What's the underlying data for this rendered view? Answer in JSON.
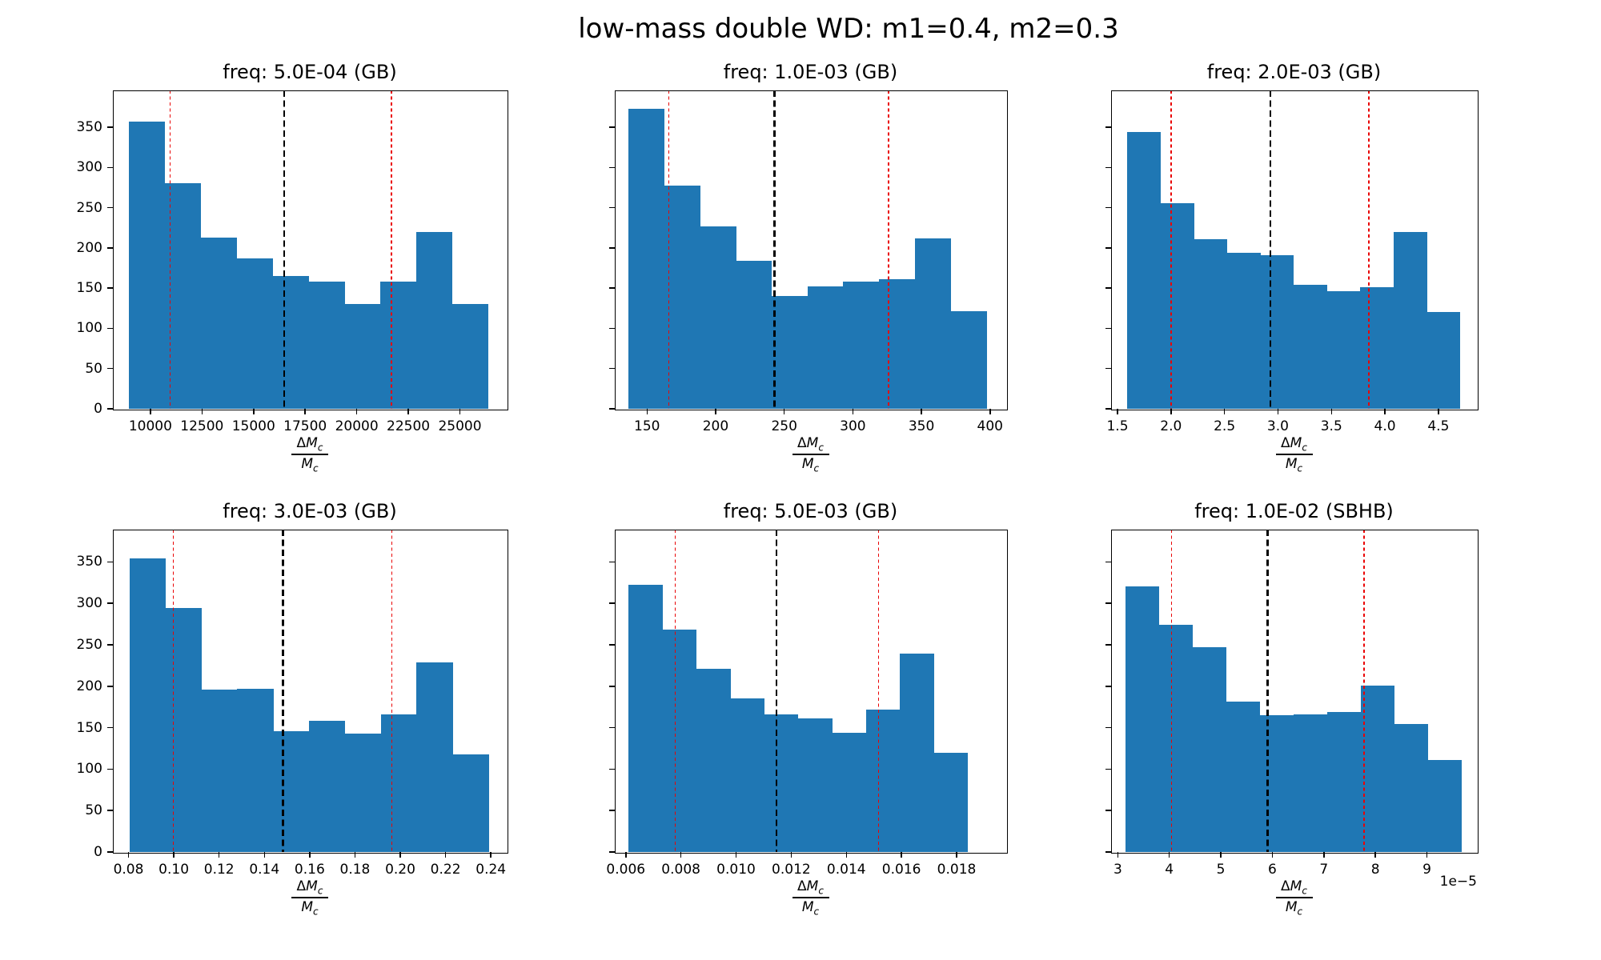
{
  "suptitle": "low-mass double WD: m1=0.4, m2=0.3",
  "xlabel": {
    "delta": "Δ",
    "symbol": "M",
    "subscript": "c"
  },
  "colors": {
    "bar": "#1f77b4",
    "percentile": "#ea0000",
    "median": "#000000",
    "frame": "#000000"
  },
  "chart_data": [
    {
      "type": "histogram",
      "title": "freq: 5.0E-04 (GB)",
      "frequency": "5.0E-04",
      "band": "GB",
      "xlim": [
        8180,
        27270
      ],
      "ylim": [
        0,
        396
      ],
      "bin_start": 8940,
      "bin_width": 1743,
      "counts": [
        357,
        281,
        213,
        187,
        165,
        158,
        130,
        158,
        220,
        130
      ],
      "median_line": 16490,
      "percentile_lines": [
        10960,
        21690
      ],
      "xtick_values": [
        10000,
        12500,
        15000,
        17500,
        20000,
        22500,
        25000
      ],
      "xtick_labels": [
        "10000",
        "12500",
        "15000",
        "17500",
        "20000",
        "22500",
        "25000"
      ],
      "ytick_values": [
        0,
        50,
        100,
        150,
        200,
        250,
        300,
        350
      ],
      "ytick_labels": [
        "0",
        "50",
        "100",
        "150",
        "200",
        "250",
        "300",
        "350"
      ],
      "offset_label": null
    },
    {
      "type": "histogram",
      "title": "freq: 1.0E-03 (GB)",
      "frequency": "1.0E-03",
      "band": "GB",
      "xlim": [
        126.5,
        411.8
      ],
      "ylim": [
        0,
        396
      ],
      "bin_start": 136.4,
      "bin_width": 26.1,
      "counts": [
        373,
        278,
        227,
        184,
        140,
        152,
        158,
        161,
        212,
        121
      ],
      "median_line": 243,
      "percentile_lines": [
        166,
        326
      ],
      "xtick_values": [
        150,
        200,
        250,
        300,
        350,
        400
      ],
      "xtick_labels": [
        "150",
        "200",
        "250",
        "300",
        "350",
        "400"
      ],
      "ytick_values": [
        0,
        50,
        100,
        150,
        200,
        250,
        300,
        350
      ],
      "ytick_labels": null,
      "offset_label": null
    },
    {
      "type": "histogram",
      "title": "freq: 2.0E-03 (GB)",
      "frequency": "2.0E-03",
      "band": "GB",
      "xlim": [
        1.44,
        4.86
      ],
      "ylim": [
        0,
        396
      ],
      "bin_start": 1.59,
      "bin_width": 0.311,
      "counts": [
        344,
        256,
        211,
        194,
        191,
        154,
        146,
        151,
        220,
        120
      ],
      "median_line": 2.93,
      "percentile_lines": [
        2.0,
        3.85
      ],
      "xtick_values": [
        1.5,
        2.0,
        2.5,
        3.0,
        3.5,
        4.0,
        4.5
      ],
      "xtick_labels": [
        "1.5",
        "2.0",
        "2.5",
        "3.0",
        "3.5",
        "4.0",
        "4.5"
      ],
      "ytick_values": [
        0,
        50,
        100,
        150,
        200,
        250,
        300,
        350
      ],
      "ytick_labels": null,
      "offset_label": null
    },
    {
      "type": "histogram",
      "title": "freq: 3.0E-03 (GB)",
      "frequency": "3.0E-03",
      "band": "GB",
      "xlim": [
        0.0731,
        0.247
      ],
      "ylim": [
        0,
        389
      ],
      "bin_start": 0.0805,
      "bin_width": 0.01584,
      "counts": [
        354,
        294,
        196,
        197,
        146,
        158,
        143,
        166,
        229,
        118
      ],
      "median_line": 0.1482,
      "percentile_lines": [
        0.0997,
        0.1962
      ],
      "xtick_values": [
        0.08,
        0.1,
        0.12,
        0.14,
        0.16,
        0.18,
        0.2,
        0.22,
        0.24
      ],
      "xtick_labels": [
        "0.08",
        "0.10",
        "0.12",
        "0.14",
        "0.16",
        "0.18",
        "0.20",
        "0.22",
        "0.24"
      ],
      "ytick_values": [
        0,
        50,
        100,
        150,
        200,
        250,
        300,
        350
      ],
      "ytick_labels": [
        "0",
        "50",
        "100",
        "150",
        "200",
        "250",
        "300",
        "350"
      ],
      "offset_label": null
    },
    {
      "type": "histogram",
      "title": "freq: 5.0E-03 (GB)",
      "frequency": "5.0E-03",
      "band": "GB",
      "xlim": [
        0.0056,
        0.0198
      ],
      "ylim": [
        0,
        389
      ],
      "bin_start": 0.0061,
      "bin_width": 0.00123,
      "counts": [
        322,
        268,
        221,
        185,
        166,
        161,
        144,
        172,
        239,
        120
      ],
      "median_line": 0.01147,
      "percentile_lines": [
        0.0078,
        0.01516
      ],
      "xtick_values": [
        0.006,
        0.008,
        0.01,
        0.012,
        0.014,
        0.016,
        0.018
      ],
      "xtick_labels": [
        "0.006",
        "0.008",
        "0.010",
        "0.012",
        "0.014",
        "0.016",
        "0.018"
      ],
      "ytick_values": [
        0,
        50,
        100,
        150,
        200,
        250,
        300,
        350
      ],
      "ytick_labels": null,
      "offset_label": null
    },
    {
      "type": "histogram",
      "title": "freq: 1.0E-02 (SBHB)",
      "frequency": "1.0E-02",
      "band": "SBHB",
      "xlim": [
        2.87,
        9.97
      ],
      "ylim": [
        0,
        389
      ],
      "bin_start": 3.15,
      "bin_width": 0.652,
      "counts": [
        320,
        274,
        247,
        181,
        165,
        166,
        169,
        201,
        154,
        111
      ],
      "median_line": 5.91,
      "percentile_lines": [
        4.04,
        7.78
      ],
      "xtick_values": [
        3,
        4,
        5,
        6,
        7,
        8,
        9
      ],
      "xtick_labels": [
        "3",
        "4",
        "5",
        "6",
        "7",
        "8",
        "9"
      ],
      "ytick_values": [
        0,
        50,
        100,
        150,
        200,
        250,
        300,
        350
      ],
      "ytick_labels": null,
      "offset_label": "1e−5"
    }
  ]
}
